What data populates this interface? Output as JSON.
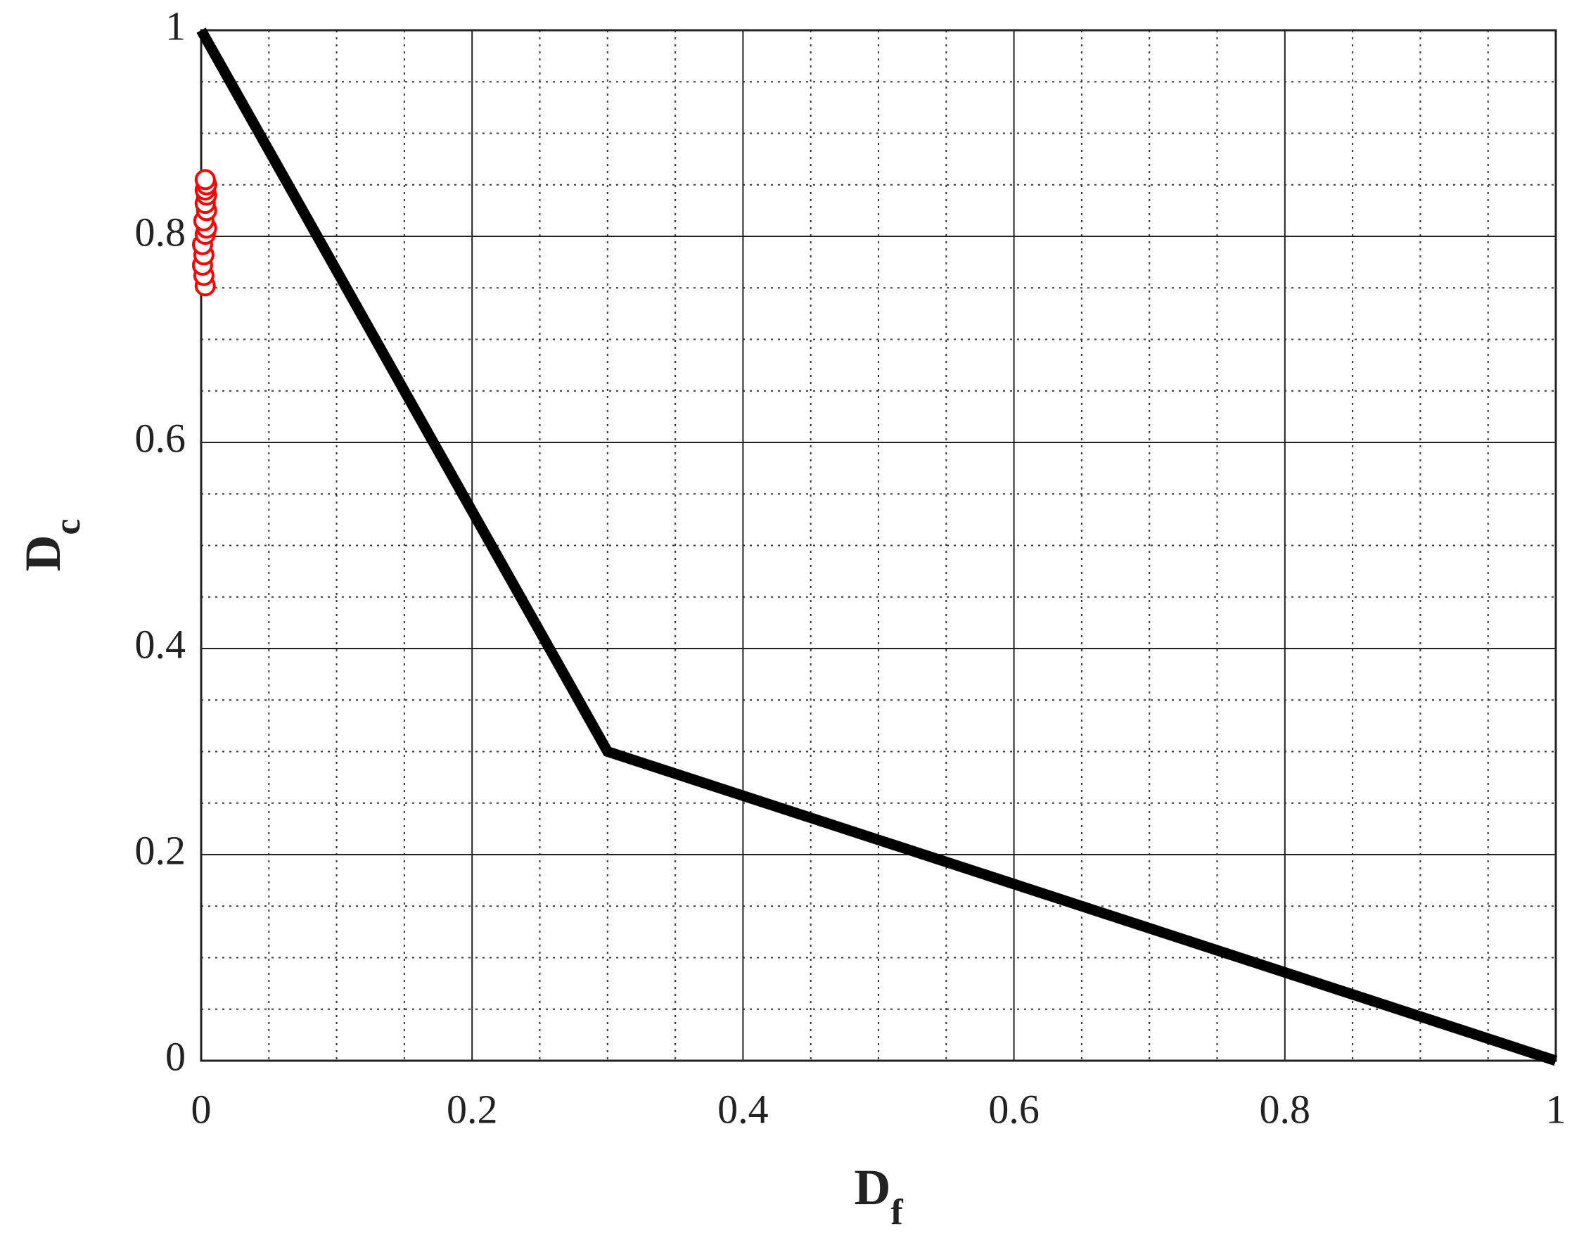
{
  "chart_data": {
    "type": "line_scatter",
    "xlabel": {
      "main": "D",
      "sub": "f"
    },
    "ylabel": {
      "main": "D",
      "sub": "c"
    },
    "xlim": [
      0,
      1
    ],
    "ylim": [
      0,
      1
    ],
    "xticks": [
      0,
      0.2,
      0.4,
      0.6,
      0.8,
      1
    ],
    "yticks": [
      0,
      0.2,
      0.4,
      0.6,
      0.8,
      1
    ],
    "minor_xticks": [
      0.05,
      0.1,
      0.15,
      0.25,
      0.3,
      0.35,
      0.45,
      0.5,
      0.55,
      0.65,
      0.7,
      0.75,
      0.85,
      0.9,
      0.95
    ],
    "minor_yticks": [
      0.05,
      0.1,
      0.15,
      0.25,
      0.3,
      0.35,
      0.45,
      0.5,
      0.55,
      0.65,
      0.7,
      0.75,
      0.85,
      0.9,
      0.95
    ],
    "grid": true,
    "series": [
      {
        "kind": "line",
        "color": "#000000",
        "x": [
          0,
          0.3,
          1
        ],
        "y": [
          1,
          0.3,
          0
        ]
      },
      {
        "kind": "scatter",
        "color": "#ff0000",
        "x": [
          0.003,
          0.002,
          0.001,
          0.002,
          0.001,
          0.003,
          0.004,
          0.002,
          0.004,
          0.003,
          0.004,
          0.003,
          0.004,
          0.003
        ],
        "y": [
          0.752,
          0.762,
          0.772,
          0.782,
          0.792,
          0.802,
          0.808,
          0.815,
          0.825,
          0.832,
          0.84,
          0.845,
          0.85,
          0.855
        ]
      }
    ]
  }
}
